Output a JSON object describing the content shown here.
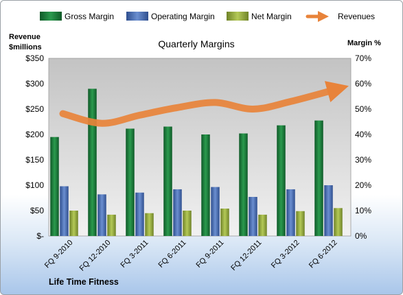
{
  "chart_data": {
    "type": "bar",
    "title": "Quarterly Margins",
    "ylabel_left": "Revenue $millions",
    "ylabel_right": "Margin %",
    "company": "Life Time Fitness",
    "categories": [
      "FQ 9-2010",
      "FQ 12-2010",
      "FQ 3-2011",
      "FQ 6-2011",
      "FQ 9-2011",
      "FQ 12-2011",
      "FQ 3-2012",
      "FQ 6-2012"
    ],
    "left_ticks": [
      "$-",
      "$50",
      "$100",
      "$150",
      "$200",
      "$250",
      "$300",
      "$350"
    ],
    "right_ticks": [
      "0%",
      "10%",
      "20%",
      "30%",
      "40%",
      "50%",
      "60%",
      "70%"
    ],
    "ylim_left": [
      0,
      350
    ],
    "ylim_right": [
      0,
      70
    ],
    "grid": false,
    "legend_position": "top",
    "series": [
      {
        "name": "Gross Margin",
        "kind": "bar",
        "axis": "right",
        "color": "#1e7a3c",
        "values": [
          39,
          58,
          42.3,
          43.1,
          40,
          40.4,
          43.6,
          45.5
        ]
      },
      {
        "name": "Operating Margin",
        "kind": "bar",
        "axis": "right",
        "color": "#4a6fb5",
        "values": [
          19.6,
          16.4,
          17.1,
          18.4,
          19.3,
          15.4,
          18.4,
          20
        ]
      },
      {
        "name": "Net Margin",
        "kind": "bar",
        "axis": "right",
        "color": "#93a83c",
        "values": [
          10,
          8.4,
          9,
          10,
          10.8,
          8.4,
          9.8,
          11
        ]
      },
      {
        "name": "Revenues",
        "kind": "line",
        "axis": "left",
        "color": "#e8833a",
        "values": [
          241,
          222,
          238,
          253,
          263,
          250,
          265,
          290
        ]
      }
    ]
  }
}
